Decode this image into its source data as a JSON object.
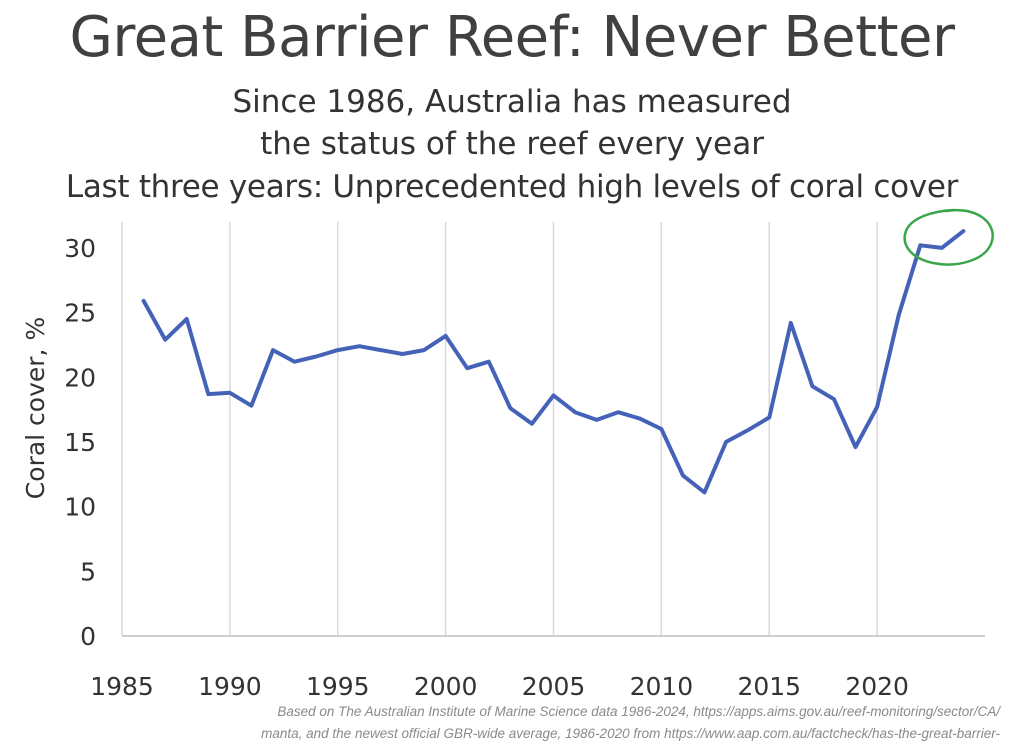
{
  "chart_data": {
    "type": "line",
    "title": "Great Barrier Reef: Never Better",
    "subtitle": [
      "Since 1986, Australia has measured",
      "the status of the reef every year",
      "Last three years: Unprecedented high levels of coral cover"
    ],
    "xlabel": "",
    "ylabel": "Coral cover, %",
    "xlim": [
      1985,
      2025
    ],
    "ylim": [
      0,
      32
    ],
    "xticks": [
      1985,
      1990,
      1995,
      2000,
      2005,
      2010,
      2015,
      2020
    ],
    "yticks": [
      0,
      5,
      10,
      15,
      20,
      25,
      30
    ],
    "grid": "vertical",
    "line_color": "#4463b8",
    "highlight_color": "#3aa64a",
    "x": [
      1986,
      1987,
      1988,
      1989,
      1990,
      1991,
      1992,
      1993,
      1994,
      1995,
      1996,
      1997,
      1998,
      1999,
      2000,
      2001,
      2002,
      2003,
      2004,
      2005,
      2006,
      2007,
      2008,
      2009,
      2010,
      2011,
      2012,
      2013,
      2014,
      2015,
      2016,
      2017,
      2018,
      2019,
      2020,
      2021,
      2022,
      2023,
      2024
    ],
    "values": [
      25.9,
      22.9,
      24.5,
      18.7,
      18.8,
      17.8,
      22.1,
      21.2,
      21.6,
      22.1,
      22.4,
      22.1,
      21.8,
      22.1,
      23.2,
      20.7,
      21.2,
      17.6,
      16.4,
      18.6,
      17.3,
      16.7,
      17.3,
      16.8,
      16.0,
      12.4,
      11.1,
      15.0,
      15.9,
      16.9,
      24.2,
      19.3,
      18.3,
      14.6,
      17.7,
      24.8,
      30.2,
      30.0,
      31.3
    ],
    "source": [
      "Based on The Australian Institute of Marine Science data 1986-2024, https://apps.aims.gov.au/reef-monitoring/sector/CA/",
      "manta, and the newest official GBR-wide average, 1986-2020 from https://www.aap.com.au/factcheck/has-the-great-barrier-"
    ]
  }
}
